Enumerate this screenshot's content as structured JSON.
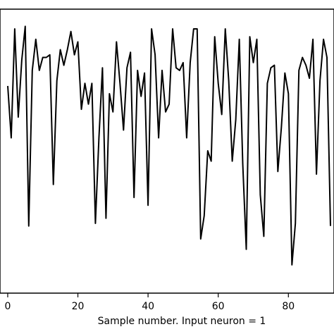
{
  "chart_data": {
    "type": "line",
    "title": "",
    "xlabel": "Sample number.  Input neuron = 1",
    "ylabel": "",
    "xlim": [
      -2.2,
      93
    ],
    "ylim": [
      0,
      1
    ],
    "x_ticks": [
      0,
      20,
      40,
      60,
      80
    ],
    "x_tick_labels": [
      "0",
      "20",
      "40",
      "60",
      "80"
    ],
    "grid": false,
    "legend": "none",
    "line_color": "#000000",
    "series": [
      {
        "x": [
          0,
          1,
          2,
          3,
          4,
          5,
          6,
          7,
          8,
          9,
          10,
          11,
          12,
          13,
          14,
          15,
          16,
          17,
          18,
          19,
          20,
          21,
          22,
          23,
          24,
          25,
          26,
          27,
          28,
          29,
          30,
          31,
          32,
          33,
          34,
          35,
          36,
          37,
          38,
          39,
          40,
          41,
          42,
          43,
          44,
          45,
          46,
          47,
          48,
          49,
          50,
          51,
          52,
          53,
          54,
          55,
          56,
          57,
          58,
          59,
          60,
          61,
          62,
          63,
          64,
          65,
          66,
          67,
          68,
          69,
          70,
          71,
          72,
          73,
          74,
          75,
          76,
          77,
          78,
          79,
          80,
          81,
          82,
          83,
          84,
          85,
          86,
          87,
          88,
          89,
          90,
          91,
          92
        ],
        "values": [
          0.75,
          0.55,
          0.97,
          0.63,
          0.85,
          0.98,
          0.21,
          0.81,
          0.93,
          0.81,
          0.86,
          0.86,
          0.87,
          0.37,
          0.77,
          0.89,
          0.83,
          0.89,
          0.96,
          0.87,
          0.92,
          0.66,
          0.76,
          0.68,
          0.76,
          0.22,
          0.55,
          0.82,
          0.24,
          0.72,
          0.65,
          0.92,
          0.76,
          0.58,
          0.82,
          0.88,
          0.32,
          0.81,
          0.71,
          0.8,
          0.29,
          0.97,
          0.87,
          0.55,
          0.81,
          0.65,
          0.68,
          0.97,
          0.82,
          0.81,
          0.84,
          0.55,
          0.84,
          0.97,
          0.97,
          0.16,
          0.25,
          0.5,
          0.46,
          0.94,
          0.76,
          0.64,
          0.97,
          0.77,
          0.46,
          0.62,
          0.93,
          0.45,
          0.12,
          0.94,
          0.84,
          0.93,
          0.33,
          0.17,
          0.76,
          0.82,
          0.83,
          0.42,
          0.59,
          0.8,
          0.72,
          0.06,
          0.22,
          0.81,
          0.86,
          0.83,
          0.78,
          0.93,
          0.41,
          0.77,
          0.93,
          0.86,
          0.21
        ]
      }
    ]
  }
}
